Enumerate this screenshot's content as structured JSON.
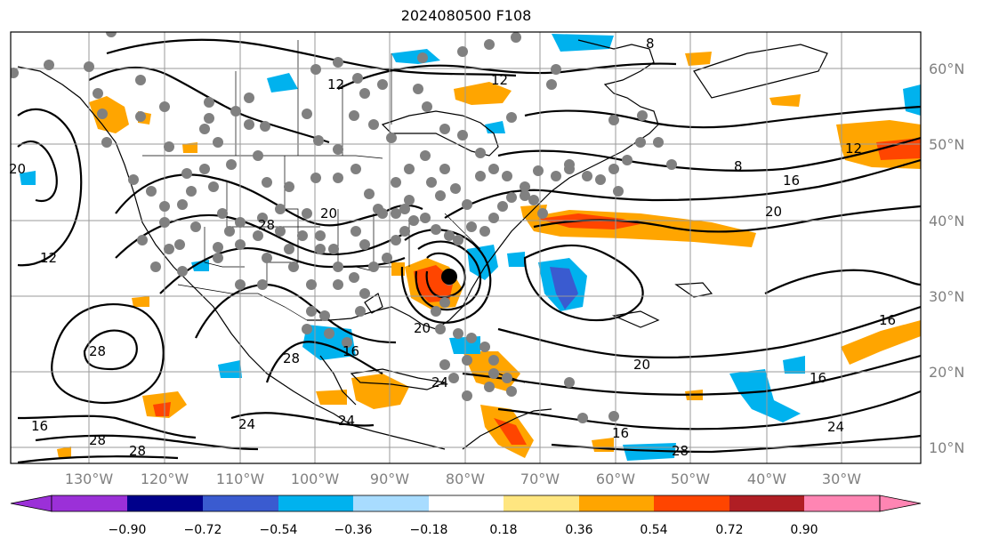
{
  "title": "2024080500 F108",
  "lon_labels": [
    "130°W",
    "120°W",
    "110°W",
    "100°W",
    "90°W",
    "80°W",
    "70°W",
    "60°W",
    "50°W",
    "40°W",
    "30°W"
  ],
  "lat_labels": [
    "60°N",
    "50°N",
    "40°N",
    "30°N",
    "20°N",
    "10°N"
  ],
  "contour_labels": [
    "8",
    "8",
    "12",
    "12",
    "12",
    "12",
    "16",
    "16",
    "16",
    "16",
    "16",
    "16",
    "20",
    "20",
    "20",
    "20",
    "20",
    "24",
    "24",
    "24",
    "24",
    "28",
    "28",
    "28",
    "28",
    "28",
    "28"
  ],
  "colorbar": {
    "ticks": [
      "−0.90",
      "−0.72",
      "−0.54",
      "−0.36",
      "−0.18",
      "0.18",
      "0.36",
      "0.54",
      "0.72",
      "0.90"
    ],
    "colors": [
      "#9b30d8",
      "#00008b",
      "#3a5bd0",
      "#00b2ee",
      "#a8dcff",
      "#ffffff",
      "#ffe680",
      "#ffa500",
      "#ff4500",
      "#b01e24",
      "#ff85b3"
    ]
  },
  "storm_marker_color": "#000000",
  "station_marker_color": "#808080"
}
